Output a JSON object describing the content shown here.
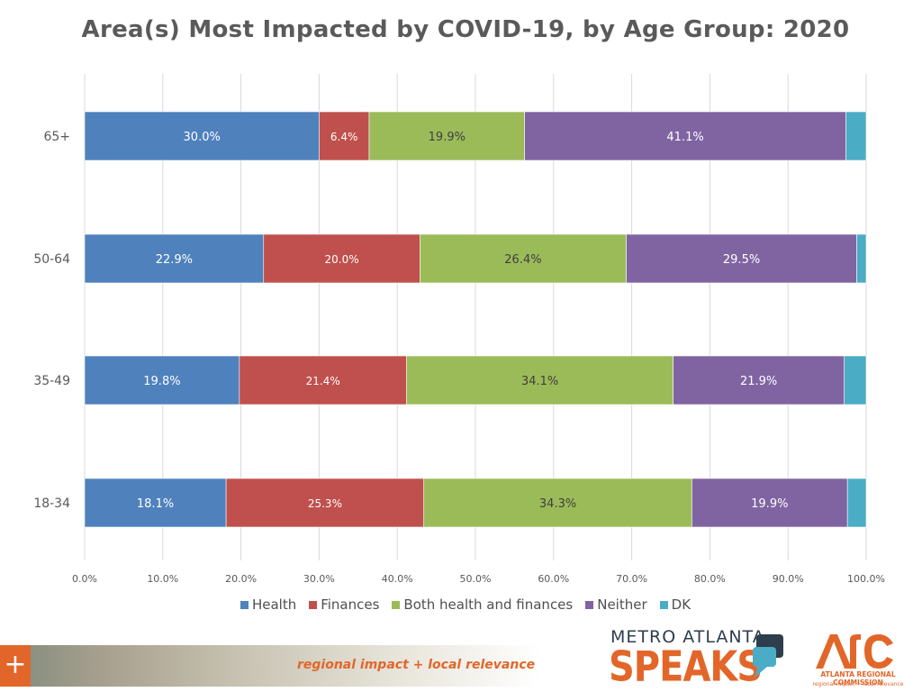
{
  "colors": {
    "health": "#4f81bd",
    "finances": "#c0504d",
    "both": "#9bbb59",
    "neither": "#8064a2",
    "dk": "#4bacc6",
    "grid": "#d9d9d9",
    "axis_text": "#595959",
    "accent": "#e2662a"
  },
  "chart_data": {
    "type": "bar",
    "orientation": "horizontal",
    "stacked": "percent",
    "title": "Area(s) Most Impacted by COVID-19, by Age Group: 2020",
    "categories": [
      "65+",
      "50-64",
      "35-49",
      "18-34"
    ],
    "series": [
      {
        "name": "Health",
        "color": "#4f81bd",
        "values": [
          30.0,
          22.9,
          19.8,
          18.1
        ],
        "labels": [
          "30.0%",
          "22.9%",
          "19.8%",
          "18.1%"
        ]
      },
      {
        "name": "Finances",
        "color": "#c0504d",
        "values": [
          6.4,
          20.0,
          21.4,
          25.3
        ],
        "labels": [
          "6.4%",
          "20.0%",
          "21.4%",
          "25.3%"
        ]
      },
      {
        "name": "Both health and finances",
        "color": "#9bbb59",
        "values": [
          19.9,
          26.4,
          34.1,
          34.3
        ],
        "labels": [
          "19.9%",
          "26.4%",
          "34.1%",
          "34.3%"
        ]
      },
      {
        "name": "Neither",
        "color": "#8064a2",
        "values": [
          41.1,
          29.5,
          21.9,
          19.9
        ],
        "labels": [
          "41.1%",
          "29.5%",
          "21.9%",
          "19.9%"
        ]
      },
      {
        "name": "DK",
        "color": "#4bacc6",
        "values": [
          2.6,
          1.2,
          2.8,
          2.4
        ],
        "labels": [
          "",
          "",
          "",
          ""
        ]
      }
    ],
    "xlim": [
      0,
      100
    ],
    "xticks": [
      "0.0%",
      "10.0%",
      "20.0%",
      "30.0%",
      "40.0%",
      "50.0%",
      "60.0%",
      "70.0%",
      "80.0%",
      "90.0%",
      "100.0%"
    ],
    "grid": true,
    "legend": "bottom"
  },
  "footer": {
    "plus": "+",
    "tagline": "regional impact + local relevance",
    "mas_top": "METRO ATLANTA",
    "mas_big": "SPEAKS",
    "arc_name": "ATLANTA REGIONAL COMMISSION",
    "arc_tag": "regional impact + local relevance"
  }
}
